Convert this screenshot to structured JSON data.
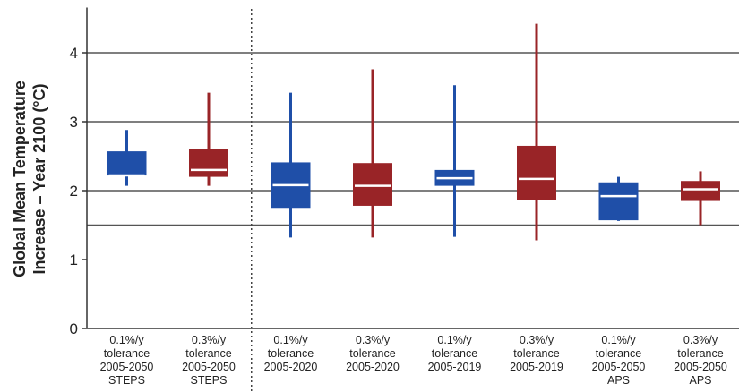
{
  "chart_data": {
    "type": "boxplot",
    "ylabel_line1": "Global Mean Temperature",
    "ylabel_line2": "Increase – Year 2100 (°C)",
    "ylim": [
      0,
      4.5
    ],
    "yticks": [
      "0",
      "1",
      "2",
      "3",
      "4"
    ],
    "reference_lines": [
      1.5,
      2,
      3,
      4
    ],
    "grid": false,
    "separator_after_index": 1,
    "colors": {
      "blue": "#1f4fa8",
      "red": "#992427",
      "median": "#ffffff"
    },
    "categories": [
      {
        "lines": [
          "0.1%/y",
          "tolerance",
          "2005-2050",
          "STEPS"
        ],
        "color": "blue",
        "whisker_low": 2.07,
        "q1": 2.22,
        "median": 2.22,
        "q3": 2.57,
        "whisker_high": 2.88
      },
      {
        "lines": [
          "0.3%/y",
          "tolerance",
          "2005-2050",
          "STEPS"
        ],
        "color": "red",
        "whisker_low": 2.07,
        "q1": 2.2,
        "median": 2.3,
        "q3": 2.6,
        "whisker_high": 3.42
      },
      {
        "lines": [
          "0.1%/y",
          "tolerance",
          "2005-2020"
        ],
        "color": "blue",
        "whisker_low": 1.32,
        "q1": 1.75,
        "median": 2.08,
        "q3": 2.41,
        "whisker_high": 3.42
      },
      {
        "lines": [
          "0.3%/y",
          "tolerance",
          "2005-2020"
        ],
        "color": "red",
        "whisker_low": 1.32,
        "q1": 1.78,
        "median": 2.07,
        "q3": 2.4,
        "whisker_high": 3.76
      },
      {
        "lines": [
          "0.1%/y",
          "tolerance",
          "2005-2019"
        ],
        "color": "blue",
        "whisker_low": 1.33,
        "q1": 2.07,
        "median": 2.18,
        "q3": 2.3,
        "whisker_high": 3.53
      },
      {
        "lines": [
          "0.3%/y",
          "tolerance",
          "2005-2019"
        ],
        "color": "red",
        "whisker_low": 1.28,
        "q1": 1.87,
        "median": 2.17,
        "q3": 2.65,
        "whisker_high": 4.42
      },
      {
        "lines": [
          "0.1%/y",
          "tolerance",
          "2005-2050",
          "APS"
        ],
        "color": "blue",
        "whisker_low": 1.56,
        "q1": 1.57,
        "median": 1.92,
        "q3": 2.12,
        "whisker_high": 2.2
      },
      {
        "lines": [
          "0.3%/y",
          "tolerance",
          "2005-2050",
          "APS"
        ],
        "color": "red",
        "whisker_low": 1.5,
        "q1": 1.85,
        "median": 2.02,
        "q3": 2.14,
        "whisker_high": 2.28
      }
    ]
  }
}
